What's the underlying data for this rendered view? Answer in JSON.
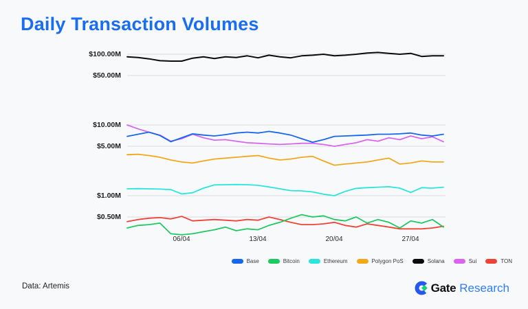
{
  "page": {
    "title": "Daily Transaction Volumes",
    "data_source": "Data: Artemis"
  },
  "branding": {
    "logo_icon": "gate-logo-icon",
    "logo_text_primary": "Gate",
    "logo_text_secondary": "Research",
    "logo_blue": "#2558eb",
    "logo_green": "#17d183",
    "research_text_color": "#2e7ef2"
  },
  "colors": {
    "title": "#1a6ded",
    "background": "#f8f9fb",
    "gridline": "#dcdce0",
    "axis_text": "#1c1c1f"
  },
  "chart_data": {
    "type": "line",
    "title": "Daily Transaction Volumes",
    "unit": "USD millions per day",
    "y_scale": "log",
    "grid": "horizontal-only",
    "legend_position": "bottom-right",
    "x": [
      "01/04",
      "02/04",
      "03/04",
      "04/04",
      "05/04",
      "06/04",
      "07/04",
      "08/04",
      "09/04",
      "10/04",
      "11/04",
      "12/04",
      "13/04",
      "14/04",
      "15/04",
      "16/04",
      "17/04",
      "18/04",
      "19/04",
      "20/04",
      "21/04",
      "22/04",
      "23/04",
      "24/04",
      "25/04",
      "26/04",
      "27/04",
      "28/04",
      "29/04",
      "30/04"
    ],
    "x_tick_labels": [
      "06/04",
      "13/04",
      "20/04",
      "27/04"
    ],
    "y_ticks": [
      {
        "label": "$100.00M",
        "value": 100
      },
      {
        "label": "$50.00M",
        "value": 50
      },
      {
        "label": "$10.00M",
        "value": 10
      },
      {
        "label": "$5.00M",
        "value": 5
      },
      {
        "label": "$1.00M",
        "value": 1
      },
      {
        "label": "$0.50M",
        "value": 0.5
      }
    ],
    "series": [
      {
        "name": "Base",
        "color": "#1766eb",
        "values": [
          6.9,
          7.4,
          7.9,
          7.1,
          5.8,
          6.6,
          7.5,
          7.2,
          7.0,
          7.3,
          7.7,
          7.9,
          7.7,
          8.1,
          7.7,
          7.2,
          6.4,
          5.7,
          6.2,
          6.9,
          7.0,
          7.1,
          7.2,
          7.4,
          7.4,
          7.5,
          7.7,
          7.2,
          7.0,
          7.4
        ]
      },
      {
        "name": "Bitcoin",
        "color": "#1fc962",
        "values": [
          0.35,
          0.38,
          0.39,
          0.41,
          0.29,
          0.28,
          0.29,
          0.31,
          0.33,
          0.36,
          0.32,
          0.34,
          0.33,
          0.38,
          0.42,
          0.48,
          0.54,
          0.5,
          0.52,
          0.46,
          0.44,
          0.5,
          0.41,
          0.46,
          0.42,
          0.35,
          0.44,
          0.41,
          0.46,
          0.36
        ]
      },
      {
        "name": "Ethereum",
        "color": "#2ae5dc",
        "values": [
          1.25,
          1.26,
          1.25,
          1.24,
          1.22,
          1.06,
          1.1,
          1.28,
          1.42,
          1.43,
          1.44,
          1.43,
          1.4,
          1.33,
          1.25,
          1.18,
          1.17,
          1.13,
          1.05,
          1.0,
          1.15,
          1.27,
          1.3,
          1.32,
          1.34,
          1.28,
          1.11,
          1.3,
          1.28,
          1.32
        ]
      },
      {
        "name": "Polygon PoS",
        "color": "#f2a81d",
        "values": [
          3.8,
          3.85,
          3.7,
          3.5,
          3.2,
          3.0,
          2.9,
          3.1,
          3.3,
          3.4,
          3.5,
          3.6,
          3.7,
          3.4,
          3.2,
          3.3,
          3.5,
          3.6,
          3.1,
          2.7,
          2.8,
          2.9,
          3.0,
          3.2,
          3.4,
          2.8,
          2.9,
          3.1,
          3.0,
          3.0
        ]
      },
      {
        "name": "Solana",
        "color": "#0a0a0c",
        "values": [
          92,
          90,
          86,
          81,
          80,
          80,
          88,
          92,
          87,
          92,
          90,
          95,
          89,
          97,
          92,
          89,
          95,
          97,
          100,
          95,
          97,
          100,
          104,
          106,
          103,
          100,
          103,
          93,
          95,
          95
        ]
      },
      {
        "name": "Sui",
        "color": "#d964ef",
        "values": [
          10.0,
          8.8,
          7.9,
          7.2,
          5.9,
          6.4,
          7.4,
          6.6,
          6.1,
          6.2,
          5.9,
          5.6,
          5.5,
          5.4,
          5.3,
          5.4,
          5.5,
          5.5,
          5.3,
          5.0,
          5.3,
          5.6,
          6.2,
          5.9,
          6.6,
          6.2,
          7.0,
          6.4,
          6.8,
          5.8
        ]
      },
      {
        "name": "TON",
        "color": "#ef4337",
        "values": [
          0.43,
          0.46,
          0.48,
          0.49,
          0.47,
          0.51,
          0.44,
          0.45,
          0.46,
          0.45,
          0.44,
          0.46,
          0.45,
          0.5,
          0.46,
          0.42,
          0.39,
          0.39,
          0.4,
          0.42,
          0.38,
          0.36,
          0.4,
          0.38,
          0.36,
          0.34,
          0.34,
          0.34,
          0.35,
          0.37
        ]
      }
    ]
  }
}
